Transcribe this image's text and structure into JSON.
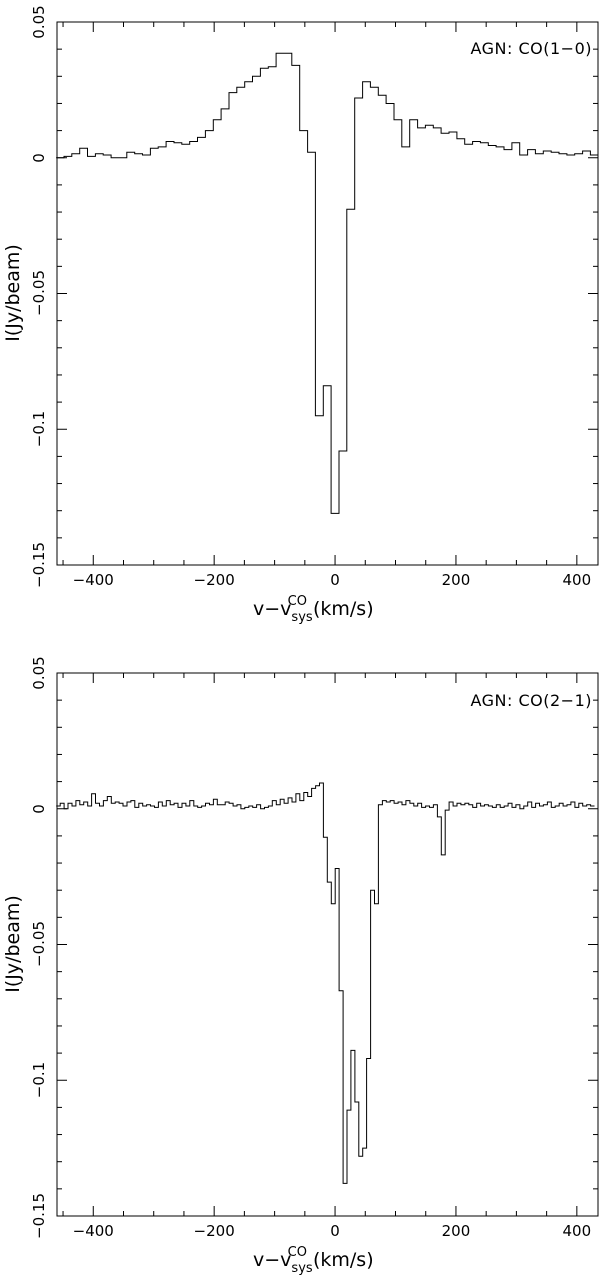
{
  "chart_data": [
    {
      "type": "line",
      "annotation": "AGN: CO(1−0)",
      "ylabel": "I(Jy/beam)",
      "xlabel": {
        "v": "v−v",
        "sub": "sys",
        "sup": "CO",
        "unit": "(km/s)"
      },
      "xlim": [
        -460,
        435
      ],
      "ylim": [
        -0.15,
        0.05
      ],
      "x_ticks": [
        -400,
        -200,
        0,
        200,
        400
      ],
      "x_ticklabels": [
        "−400",
        "−200",
        "0",
        "200",
        "400"
      ],
      "y_ticks": [
        -0.15,
        -0.1,
        -0.05,
        0,
        0.05
      ],
      "y_ticklabels": [
        "−0.15",
        "−0.1",
        "−0.05",
        "0",
        "0.05"
      ],
      "step_width": 13,
      "series": [
        {
          "x": [
            -455,
            -442,
            -429,
            -416,
            -403,
            -390,
            -377,
            -364,
            -351,
            -338,
            -325,
            -312,
            -299,
            -286,
            -273,
            -260,
            -247,
            -234,
            -221,
            -208,
            -195,
            -182,
            -169,
            -156,
            -143,
            -130,
            -117,
            -104,
            -91,
            -78,
            -65,
            -52,
            -39,
            -26,
            -13,
            0,
            13,
            26,
            39,
            52,
            65,
            78,
            91,
            104,
            117,
            130,
            143,
            156,
            169,
            182,
            195,
            208,
            221,
            234,
            247,
            260,
            273,
            286,
            299,
            312,
            325,
            338,
            351,
            364,
            377,
            390,
            403,
            416,
            429
          ],
          "y": [
            0.0,
            0.0005,
            0.0015,
            0.0035,
            0.0005,
            0.0015,
            0.001,
            0.0,
            0.0,
            0.002,
            0.0015,
            0.001,
            0.0035,
            0.004,
            0.006,
            0.0055,
            0.005,
            0.006,
            0.0075,
            0.01,
            0.014,
            0.018,
            0.024,
            0.026,
            0.028,
            0.03,
            0.033,
            0.0335,
            0.0385,
            0.0385,
            0.034,
            0.01,
            0.002,
            -0.095,
            -0.084,
            -0.131,
            -0.108,
            -0.019,
            0.022,
            0.028,
            0.026,
            0.023,
            0.02,
            0.014,
            0.004,
            0.014,
            0.011,
            0.012,
            0.011,
            0.009,
            0.0095,
            0.007,
            0.005,
            0.006,
            0.0055,
            0.0045,
            0.004,
            0.003,
            0.0055,
            0.001,
            0.003,
            0.0015,
            0.0025,
            0.002,
            0.0015,
            0.001,
            0.0015,
            0.0025,
            0.001
          ]
        }
      ]
    },
    {
      "type": "line",
      "annotation": "AGN: CO(2−1)",
      "ylabel": "I(Jy/beam)",
      "xlabel": {
        "v": "v−v",
        "sub": "sys",
        "sup": "CO",
        "unit": "(km/s)"
      },
      "xlim": [
        -460,
        435
      ],
      "ylim": [
        -0.15,
        0.05
      ],
      "x_ticks": [
        -400,
        -200,
        0,
        200,
        400
      ],
      "x_ticklabels": [
        "−400",
        "−200",
        "0",
        "200",
        "400"
      ],
      "y_ticks": [
        -0.15,
        -0.1,
        -0.05,
        0,
        0.05
      ],
      "y_ticklabels": [
        "−0.15",
        "−0.1",
        "−0.05",
        "0",
        "0.05"
      ],
      "step_width": 6.5,
      "series": [
        {
          "x": [
            -458,
            -451.5,
            -445,
            -438.5,
            -432,
            -425.5,
            -419,
            -412.5,
            -406,
            -399.5,
            -393,
            -386.5,
            -380,
            -373.5,
            -367,
            -360.5,
            -354,
            -347.5,
            -341,
            -334.5,
            -328,
            -321.5,
            -315,
            -308.5,
            -302,
            -295.5,
            -289,
            -282.5,
            -276,
            -269.5,
            -263,
            -256.5,
            -250,
            -243.5,
            -237,
            -230.5,
            -224,
            -217.5,
            -211,
            -204.5,
            -198,
            -191.5,
            -185,
            -178.5,
            -172,
            -165.5,
            -159,
            -152.5,
            -146,
            -139.5,
            -133,
            -126.5,
            -120,
            -113.5,
            -107,
            -100.5,
            -94,
            -87.5,
            -81,
            -74.5,
            -68,
            -61.5,
            -55,
            -48.5,
            -42,
            -35.5,
            -29,
            -22.5,
            -16,
            -9.5,
            -3,
            3.5,
            10,
            16.5,
            23,
            29.5,
            36,
            42.5,
            49,
            55.5,
            62,
            68.5,
            75,
            81.5,
            88,
            94.5,
            101,
            107.5,
            114,
            120.5,
            127,
            133.5,
            140,
            146.5,
            153,
            159.5,
            166,
            172.5,
            179,
            185.5,
            192,
            198.5,
            205,
            211.5,
            218,
            224.5,
            231,
            237.5,
            244,
            250.5,
            257,
            263.5,
            270,
            276.5,
            283,
            289.5,
            296,
            302.5,
            309,
            315.5,
            322,
            328.5,
            335,
            341.5,
            348,
            354.5,
            361,
            367.5,
            374,
            380.5,
            387,
            393.5,
            400,
            406.5,
            413,
            419.5,
            426
          ],
          "y": [
            0.001,
            0.002,
            0.0,
            0.002,
            0.001,
            0.003,
            0.0015,
            0.0025,
            0.001,
            0.0055,
            0.002,
            0.001,
            0.003,
            0.0045,
            0.002,
            0.0025,
            0.002,
            0.001,
            0.0025,
            0.003,
            0.0005,
            0.002,
            0.001,
            0.0015,
            0.001,
            0.0005,
            0.0025,
            0.001,
            0.003,
            0.0015,
            0.002,
            0.0005,
            0.002,
            0.001,
            0.003,
            0.001,
            0.0005,
            0.001,
            0.002,
            0.0015,
            0.0035,
            0.0015,
            0.0015,
            0.0025,
            0.002,
            0.001,
            0.0015,
            0.0,
            0.0005,
            0.001,
            0.0005,
            0.0015,
            0.0,
            0.0005,
            0.001,
            0.003,
            0.0015,
            0.0035,
            0.002,
            0.004,
            0.0025,
            0.0055,
            0.003,
            0.006,
            0.0045,
            0.0075,
            0.0085,
            0.0095,
            -0.0105,
            -0.027,
            -0.035,
            -0.022,
            -0.067,
            -0.138,
            -0.111,
            -0.089,
            -0.108,
            -0.128,
            -0.125,
            -0.092,
            -0.03,
            -0.035,
            0.0015,
            0.003,
            0.0025,
            0.003,
            0.002,
            0.0025,
            0.0015,
            0.003,
            0.002,
            0.001,
            0.002,
            0.0005,
            0.001,
            0.0005,
            0.0015,
            -0.003,
            -0.017,
            -0.0005,
            0.0025,
            0.001,
            0.002,
            0.0015,
            0.002,
            0.0015,
            0.0005,
            0.002,
            0.001,
            0.0015,
            0.001,
            0.0005,
            0.0015,
            0.0005,
            0.001,
            0.002,
            0.0005,
            0.0015,
            0.0,
            0.001,
            0.0025,
            0.0005,
            0.002,
            0.001,
            0.0015,
            0.0025,
            0.0005,
            0.001,
            0.002,
            0.001,
            0.0015,
            0.0025,
            0.0005,
            0.002,
            0.001,
            0.0015,
            0.001
          ]
        }
      ]
    }
  ]
}
